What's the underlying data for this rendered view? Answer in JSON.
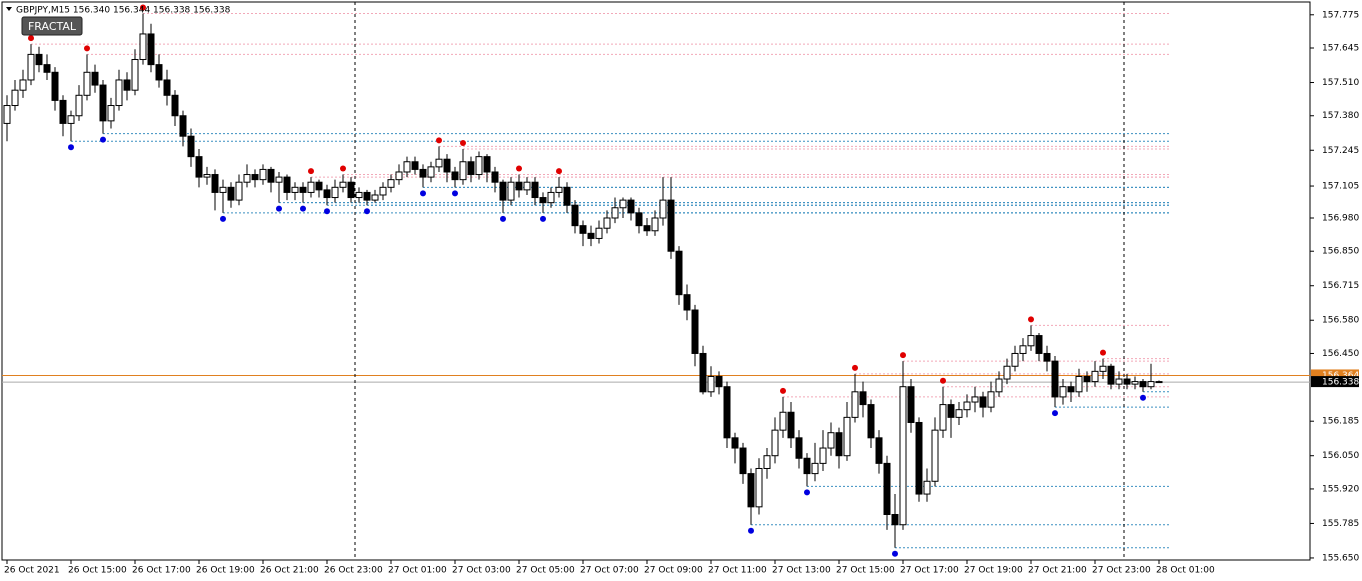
{
  "chart_data": {
    "type": "candlestick",
    "title": "GBPJPY,M15  156.340 156.344 156.338 156.338",
    "indicator_label": "FRACTAL",
    "up_color": "#ffffff",
    "down_color": "#000000",
    "fractal_up_color": "#e00000",
    "fractal_down_color": "#0000e0",
    "ylim": [
      155.642,
      157.825
    ],
    "yticks": [
      157.775,
      157.645,
      {
        "value": 157.51,
        "label": "157.510"
      },
      {
        "value": 157.38,
        "label": "157.380"
      },
      157.245,
      157.105,
      {
        "value": 156.98,
        "label": "156.980"
      },
      {
        "value": 156.85,
        "label": "156.850"
      },
      156.715,
      {
        "value": 156.58,
        "label": "156.580"
      },
      {
        "value": 156.45,
        "label": "156.450"
      },
      156.185,
      {
        "value": 156.05,
        "label": "156.050"
      },
      {
        "value": 155.92,
        "label": "155.920"
      },
      155.785,
      {
        "value": 155.65,
        "label": "155.650"
      }
    ],
    "ask": {
      "value": 156.364,
      "label": "156.364"
    },
    "bid": {
      "value": 156.338,
      "label": "156.338"
    },
    "xticks": [
      {
        "value": 0,
        "label": "26 Oct 2021"
      },
      {
        "value": 8,
        "label": "26 Oct 15:00"
      },
      {
        "value": 16,
        "label": "26 Oct 17:00"
      },
      {
        "value": 24,
        "label": "26 Oct 19:00"
      },
      {
        "value": 32,
        "label": "26 Oct 21:00"
      },
      {
        "value": 40,
        "label": "26 Oct 23:00"
      },
      {
        "value": 48,
        "label": "27 Oct 01:00"
      },
      {
        "value": 56,
        "label": "27 Oct 03:00"
      },
      {
        "value": 64,
        "label": "27 Oct 05:00"
      },
      {
        "value": 72,
        "label": "27 Oct 07:00"
      },
      {
        "value": 80,
        "label": "27 Oct 09:00"
      },
      {
        "value": 88,
        "label": "27 Oct 11:00"
      },
      {
        "value": 96,
        "label": "27 Oct 13:00"
      },
      {
        "value": 104,
        "label": "27 Oct 15:00"
      },
      {
        "value": 112,
        "label": "27 Oct 17:00"
      },
      {
        "value": 120,
        "label": "27 Oct 19:00"
      },
      {
        "value": 128,
        "label": "27 Oct 21:00"
      },
      {
        "value": 136,
        "label": "27 Oct 23:00"
      },
      {
        "value": 144,
        "label": "28 Oct 01:00"
      }
    ],
    "ohlc": [
      [
        157.35,
        157.46,
        157.28,
        157.42
      ],
      [
        157.42,
        157.52,
        157.4,
        157.48
      ],
      [
        157.48,
        157.56,
        157.45,
        157.52
      ],
      [
        157.52,
        157.66,
        157.5,
        157.62
      ],
      [
        157.62,
        157.65,
        157.55,
        157.58
      ],
      [
        157.58,
        157.62,
        157.52,
        157.55
      ],
      [
        157.55,
        157.57,
        157.4,
        157.44
      ],
      [
        157.44,
        157.46,
        157.3,
        157.35
      ],
      [
        157.35,
        157.4,
        157.28,
        157.38
      ],
      [
        157.38,
        157.5,
        157.36,
        157.46
      ],
      [
        157.46,
        157.62,
        157.44,
        157.55
      ],
      [
        157.55,
        157.58,
        157.47,
        157.5
      ],
      [
        157.5,
        157.52,
        157.31,
        157.36
      ],
      [
        157.36,
        157.45,
        157.33,
        157.42
      ],
      [
        157.42,
        157.56,
        157.4,
        157.52
      ],
      [
        157.52,
        157.55,
        157.44,
        157.48
      ],
      [
        157.48,
        157.64,
        157.46,
        157.6
      ],
      [
        157.6,
        157.78,
        157.58,
        157.7
      ],
      [
        157.7,
        157.74,
        157.55,
        157.58
      ],
      [
        157.58,
        157.62,
        157.49,
        157.52
      ],
      [
        157.52,
        157.56,
        157.42,
        157.46
      ],
      [
        157.46,
        157.48,
        157.34,
        157.38
      ],
      [
        157.38,
        157.4,
        157.26,
        157.3
      ],
      [
        157.3,
        157.33,
        157.18,
        157.22
      ],
      [
        157.22,
        157.25,
        157.1,
        157.14
      ],
      [
        157.14,
        157.18,
        157.11,
        157.15
      ],
      [
        157.15,
        157.17,
        157.01,
        157.08
      ],
      [
        157.08,
        157.13,
        157.0,
        157.1
      ],
      [
        157.1,
        157.12,
        157.02,
        157.05
      ],
      [
        157.05,
        157.15,
        157.03,
        157.12
      ],
      [
        157.12,
        157.19,
        157.1,
        157.15
      ],
      [
        157.15,
        157.17,
        157.1,
        157.13
      ],
      [
        157.13,
        157.19,
        157.11,
        157.17
      ],
      [
        157.17,
        157.18,
        157.08,
        157.12
      ],
      [
        157.12,
        157.16,
        157.04,
        157.14
      ],
      [
        157.14,
        157.15,
        157.05,
        157.08
      ],
      [
        157.08,
        157.12,
        157.05,
        157.1
      ],
      [
        157.1,
        157.12,
        157.04,
        157.08
      ],
      [
        157.08,
        157.14,
        157.06,
        157.12
      ],
      [
        157.12,
        157.13,
        157.06,
        157.09
      ],
      [
        157.09,
        157.11,
        157.03,
        157.06
      ],
      [
        157.06,
        157.13,
        157.04,
        157.1
      ],
      [
        157.1,
        157.15,
        157.08,
        157.12
      ],
      [
        157.12,
        157.14,
        157.04,
        157.06
      ],
      [
        157.06,
        157.1,
        157.04,
        157.08
      ],
      [
        157.08,
        157.09,
        157.03,
        157.05
      ],
      [
        157.05,
        157.09,
        157.04,
        157.07
      ],
      [
        157.07,
        157.12,
        157.05,
        157.1
      ],
      [
        157.1,
        157.15,
        157.08,
        157.13
      ],
      [
        157.13,
        157.19,
        157.11,
        157.16
      ],
      [
        157.16,
        157.22,
        157.14,
        157.2
      ],
      [
        157.2,
        157.22,
        157.15,
        157.17
      ],
      [
        157.17,
        157.19,
        157.1,
        157.14
      ],
      [
        157.14,
        157.2,
        157.12,
        157.18
      ],
      [
        157.18,
        157.26,
        157.16,
        157.21
      ],
      [
        157.21,
        157.23,
        157.12,
        157.16
      ],
      [
        157.16,
        157.18,
        157.1,
        157.13
      ],
      [
        157.13,
        157.25,
        157.11,
        157.2
      ],
      [
        157.2,
        157.22,
        157.12,
        157.15
      ],
      [
        157.15,
        157.24,
        157.13,
        157.22
      ],
      [
        157.22,
        157.23,
        157.12,
        157.16
      ],
      [
        157.16,
        157.18,
        157.08,
        157.12
      ],
      [
        157.12,
        157.13,
        157.0,
        157.05
      ],
      [
        157.05,
        157.14,
        157.03,
        157.12
      ],
      [
        157.12,
        157.15,
        157.06,
        157.09
      ],
      [
        157.09,
        157.14,
        157.07,
        157.12
      ],
      [
        157.12,
        157.14,
        157.03,
        157.06
      ],
      [
        157.06,
        157.08,
        157.0,
        157.04
      ],
      [
        157.04,
        157.1,
        157.02,
        157.08
      ],
      [
        157.08,
        157.14,
        157.06,
        157.1
      ],
      [
        157.1,
        157.12,
        157.0,
        157.03
      ],
      [
        157.03,
        157.05,
        156.92,
        156.95
      ],
      [
        156.95,
        156.97,
        156.87,
        156.92
      ],
      [
        156.92,
        156.95,
        156.87,
        156.9
      ],
      [
        156.9,
        156.97,
        156.88,
        156.94
      ],
      [
        156.94,
        157.01,
        156.92,
        156.98
      ],
      [
        156.98,
        157.06,
        156.96,
        157.02
      ],
      [
        157.02,
        157.06,
        156.98,
        157.05
      ],
      [
        157.05,
        157.06,
        156.97,
        157.0
      ],
      [
        157.0,
        157.02,
        156.92,
        156.95
      ],
      [
        156.95,
        156.98,
        156.91,
        156.93
      ],
      [
        156.93,
        157.01,
        156.91,
        156.98
      ],
      [
        156.98,
        157.14,
        156.95,
        157.05
      ],
      [
        157.05,
        157.14,
        156.82,
        156.85
      ],
      [
        156.85,
        156.87,
        156.64,
        156.68
      ],
      [
        156.68,
        156.72,
        156.58,
        156.62
      ],
      [
        156.62,
        156.64,
        156.4,
        156.45
      ],
      [
        156.45,
        156.48,
        156.29,
        156.3
      ],
      [
        156.3,
        156.4,
        156.28,
        156.36
      ],
      [
        156.36,
        156.38,
        156.29,
        156.32
      ],
      [
        156.32,
        156.34,
        156.08,
        156.12
      ],
      [
        156.12,
        156.14,
        156.02,
        156.08
      ],
      [
        156.08,
        156.1,
        155.94,
        155.98
      ],
      [
        155.98,
        156.0,
        155.78,
        155.85
      ],
      [
        155.85,
        156.04,
        155.82,
        156.0
      ],
      [
        156.0,
        156.08,
        155.96,
        156.05
      ],
      [
        156.05,
        156.2,
        156.02,
        156.15
      ],
      [
        156.15,
        156.28,
        156.12,
        156.22
      ],
      [
        156.22,
        156.26,
        156.08,
        156.12
      ],
      [
        156.12,
        156.15,
        156.0,
        156.04
      ],
      [
        156.04,
        156.06,
        155.93,
        155.98
      ],
      [
        155.98,
        156.1,
        155.95,
        156.02
      ],
      [
        156.02,
        156.15,
        155.99,
        156.08
      ],
      [
        156.08,
        156.18,
        156.05,
        156.14
      ],
      [
        156.14,
        156.16,
        156.0,
        156.05
      ],
      [
        156.05,
        156.26,
        156.03,
        156.2
      ],
      [
        156.2,
        156.37,
        156.18,
        156.3
      ],
      [
        156.3,
        156.34,
        156.2,
        156.25
      ],
      [
        156.25,
        156.27,
        156.08,
        156.12
      ],
      [
        156.12,
        156.15,
        155.98,
        156.02
      ],
      [
        156.02,
        156.05,
        155.76,
        155.82
      ],
      [
        155.82,
        155.9,
        155.69,
        155.78
      ],
      [
        155.78,
        156.42,
        155.76,
        156.32
      ],
      [
        156.32,
        156.35,
        156.14,
        156.18
      ],
      [
        156.18,
        156.2,
        155.87,
        155.9
      ],
      [
        155.9,
        156.0,
        155.87,
        155.95
      ],
      [
        155.95,
        156.2,
        155.93,
        156.15
      ],
      [
        156.15,
        156.32,
        156.12,
        156.25
      ],
      [
        156.25,
        156.27,
        156.12,
        156.2
      ],
      [
        156.2,
        156.26,
        156.17,
        156.23
      ],
      [
        156.23,
        156.29,
        156.2,
        156.26
      ],
      [
        156.26,
        156.32,
        156.22,
        156.28
      ],
      [
        156.28,
        156.3,
        156.2,
        156.24
      ],
      [
        156.24,
        156.34,
        156.22,
        156.3
      ],
      [
        156.3,
        156.38,
        156.28,
        156.35
      ],
      [
        156.35,
        156.43,
        156.33,
        156.4
      ],
      [
        156.4,
        156.48,
        156.38,
        156.45
      ],
      [
        156.45,
        156.51,
        156.42,
        156.48
      ],
      [
        156.48,
        156.56,
        156.46,
        156.52
      ],
      [
        156.52,
        156.53,
        156.42,
        156.45
      ],
      [
        156.45,
        156.48,
        156.38,
        156.42
      ],
      [
        156.42,
        156.44,
        156.24,
        156.28
      ],
      [
        156.28,
        156.35,
        156.25,
        156.32
      ],
      [
        156.32,
        156.34,
        156.26,
        156.3
      ],
      [
        156.3,
        156.39,
        156.28,
        156.36
      ],
      [
        156.36,
        156.38,
        156.3,
        156.34
      ],
      [
        156.34,
        156.42,
        156.32,
        156.38
      ],
      [
        156.38,
        156.43,
        156.35,
        156.4
      ],
      [
        156.4,
        156.41,
        156.31,
        156.33
      ],
      [
        156.33,
        156.38,
        156.31,
        156.35
      ],
      [
        156.35,
        156.37,
        156.31,
        156.33
      ],
      [
        156.33,
        156.36,
        156.31,
        156.34
      ],
      [
        156.34,
        156.35,
        156.3,
        156.32
      ],
      [
        156.32,
        156.41,
        156.31,
        156.34
      ],
      [
        156.34,
        156.344,
        156.338,
        156.338
      ]
    ]
  }
}
